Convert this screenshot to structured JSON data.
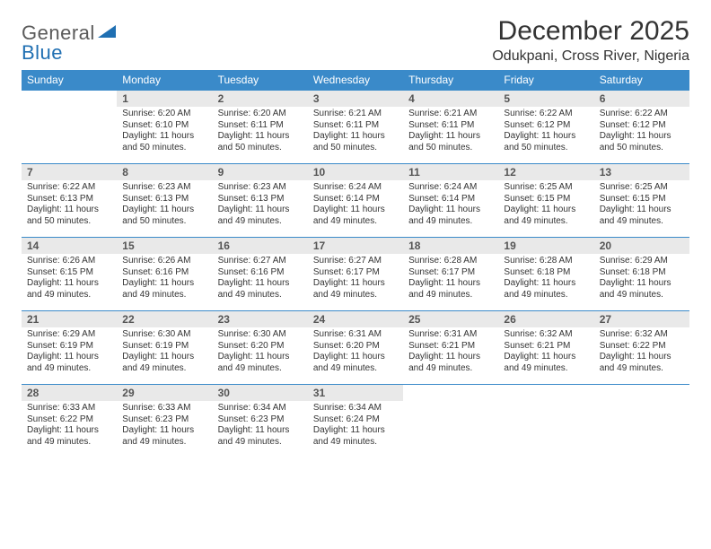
{
  "logo": {
    "part1": "General",
    "part2": "Blue"
  },
  "title": "December 2025",
  "location": "Odukpani, Cross River, Nigeria",
  "colors": {
    "header_bg": "#3a8ac9",
    "header_text": "#ffffff",
    "daynum_bg": "#e9e9e9",
    "row_border": "#3a8ac9",
    "logo_gray": "#5a5a5a",
    "logo_blue": "#1f6fb2",
    "body_text": "#333333"
  },
  "typography": {
    "title_fontsize": 30,
    "location_fontsize": 16,
    "weekday_fontsize": 12,
    "daynum_fontsize": 12,
    "body_fontsize": 10
  },
  "weekdays": [
    "Sunday",
    "Monday",
    "Tuesday",
    "Wednesday",
    "Thursday",
    "Friday",
    "Saturday"
  ],
  "weeks": [
    [
      null,
      {
        "n": "1",
        "sr": "Sunrise: 6:20 AM",
        "ss": "Sunset: 6:10 PM",
        "dl": "Daylight: 11 hours and 50 minutes."
      },
      {
        "n": "2",
        "sr": "Sunrise: 6:20 AM",
        "ss": "Sunset: 6:11 PM",
        "dl": "Daylight: 11 hours and 50 minutes."
      },
      {
        "n": "3",
        "sr": "Sunrise: 6:21 AM",
        "ss": "Sunset: 6:11 PM",
        "dl": "Daylight: 11 hours and 50 minutes."
      },
      {
        "n": "4",
        "sr": "Sunrise: 6:21 AM",
        "ss": "Sunset: 6:11 PM",
        "dl": "Daylight: 11 hours and 50 minutes."
      },
      {
        "n": "5",
        "sr": "Sunrise: 6:22 AM",
        "ss": "Sunset: 6:12 PM",
        "dl": "Daylight: 11 hours and 50 minutes."
      },
      {
        "n": "6",
        "sr": "Sunrise: 6:22 AM",
        "ss": "Sunset: 6:12 PM",
        "dl": "Daylight: 11 hours and 50 minutes."
      }
    ],
    [
      {
        "n": "7",
        "sr": "Sunrise: 6:22 AM",
        "ss": "Sunset: 6:13 PM",
        "dl": "Daylight: 11 hours and 50 minutes."
      },
      {
        "n": "8",
        "sr": "Sunrise: 6:23 AM",
        "ss": "Sunset: 6:13 PM",
        "dl": "Daylight: 11 hours and 50 minutes."
      },
      {
        "n": "9",
        "sr": "Sunrise: 6:23 AM",
        "ss": "Sunset: 6:13 PM",
        "dl": "Daylight: 11 hours and 49 minutes."
      },
      {
        "n": "10",
        "sr": "Sunrise: 6:24 AM",
        "ss": "Sunset: 6:14 PM",
        "dl": "Daylight: 11 hours and 49 minutes."
      },
      {
        "n": "11",
        "sr": "Sunrise: 6:24 AM",
        "ss": "Sunset: 6:14 PM",
        "dl": "Daylight: 11 hours and 49 minutes."
      },
      {
        "n": "12",
        "sr": "Sunrise: 6:25 AM",
        "ss": "Sunset: 6:15 PM",
        "dl": "Daylight: 11 hours and 49 minutes."
      },
      {
        "n": "13",
        "sr": "Sunrise: 6:25 AM",
        "ss": "Sunset: 6:15 PM",
        "dl": "Daylight: 11 hours and 49 minutes."
      }
    ],
    [
      {
        "n": "14",
        "sr": "Sunrise: 6:26 AM",
        "ss": "Sunset: 6:15 PM",
        "dl": "Daylight: 11 hours and 49 minutes."
      },
      {
        "n": "15",
        "sr": "Sunrise: 6:26 AM",
        "ss": "Sunset: 6:16 PM",
        "dl": "Daylight: 11 hours and 49 minutes."
      },
      {
        "n": "16",
        "sr": "Sunrise: 6:27 AM",
        "ss": "Sunset: 6:16 PM",
        "dl": "Daylight: 11 hours and 49 minutes."
      },
      {
        "n": "17",
        "sr": "Sunrise: 6:27 AM",
        "ss": "Sunset: 6:17 PM",
        "dl": "Daylight: 11 hours and 49 minutes."
      },
      {
        "n": "18",
        "sr": "Sunrise: 6:28 AM",
        "ss": "Sunset: 6:17 PM",
        "dl": "Daylight: 11 hours and 49 minutes."
      },
      {
        "n": "19",
        "sr": "Sunrise: 6:28 AM",
        "ss": "Sunset: 6:18 PM",
        "dl": "Daylight: 11 hours and 49 minutes."
      },
      {
        "n": "20",
        "sr": "Sunrise: 6:29 AM",
        "ss": "Sunset: 6:18 PM",
        "dl": "Daylight: 11 hours and 49 minutes."
      }
    ],
    [
      {
        "n": "21",
        "sr": "Sunrise: 6:29 AM",
        "ss": "Sunset: 6:19 PM",
        "dl": "Daylight: 11 hours and 49 minutes."
      },
      {
        "n": "22",
        "sr": "Sunrise: 6:30 AM",
        "ss": "Sunset: 6:19 PM",
        "dl": "Daylight: 11 hours and 49 minutes."
      },
      {
        "n": "23",
        "sr": "Sunrise: 6:30 AM",
        "ss": "Sunset: 6:20 PM",
        "dl": "Daylight: 11 hours and 49 minutes."
      },
      {
        "n": "24",
        "sr": "Sunrise: 6:31 AM",
        "ss": "Sunset: 6:20 PM",
        "dl": "Daylight: 11 hours and 49 minutes."
      },
      {
        "n": "25",
        "sr": "Sunrise: 6:31 AM",
        "ss": "Sunset: 6:21 PM",
        "dl": "Daylight: 11 hours and 49 minutes."
      },
      {
        "n": "26",
        "sr": "Sunrise: 6:32 AM",
        "ss": "Sunset: 6:21 PM",
        "dl": "Daylight: 11 hours and 49 minutes."
      },
      {
        "n": "27",
        "sr": "Sunrise: 6:32 AM",
        "ss": "Sunset: 6:22 PM",
        "dl": "Daylight: 11 hours and 49 minutes."
      }
    ],
    [
      {
        "n": "28",
        "sr": "Sunrise: 6:33 AM",
        "ss": "Sunset: 6:22 PM",
        "dl": "Daylight: 11 hours and 49 minutes."
      },
      {
        "n": "29",
        "sr": "Sunrise: 6:33 AM",
        "ss": "Sunset: 6:23 PM",
        "dl": "Daylight: 11 hours and 49 minutes."
      },
      {
        "n": "30",
        "sr": "Sunrise: 6:34 AM",
        "ss": "Sunset: 6:23 PM",
        "dl": "Daylight: 11 hours and 49 minutes."
      },
      {
        "n": "31",
        "sr": "Sunrise: 6:34 AM",
        "ss": "Sunset: 6:24 PM",
        "dl": "Daylight: 11 hours and 49 minutes."
      },
      null,
      null,
      null
    ]
  ]
}
